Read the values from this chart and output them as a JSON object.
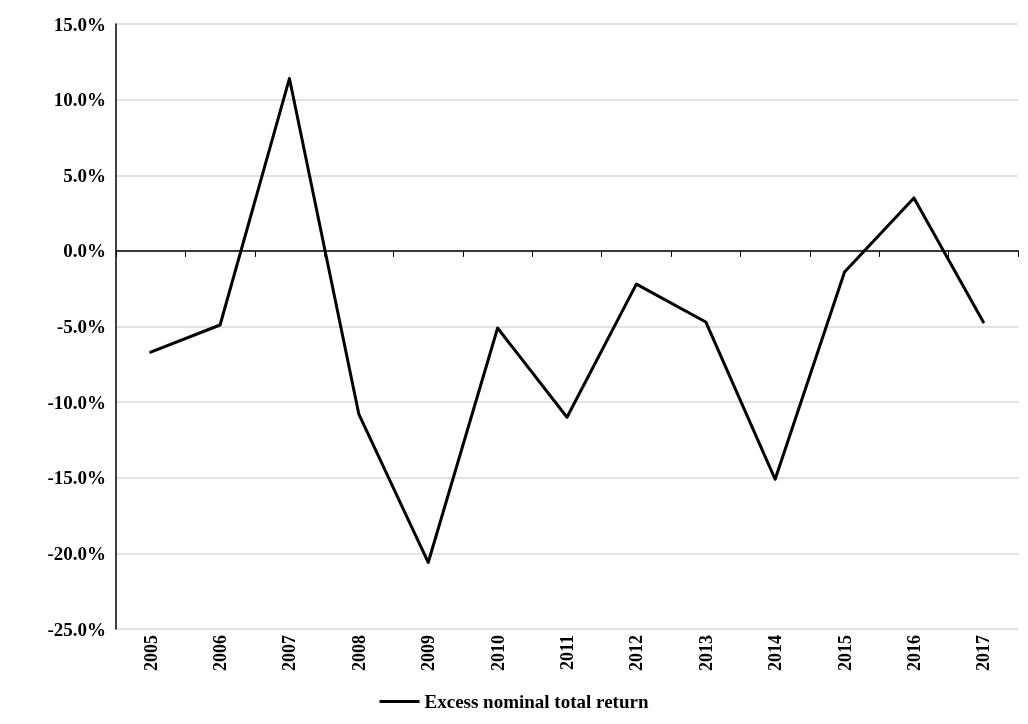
{
  "chart_data": {
    "type": "line",
    "categories": [
      "2005",
      "2006",
      "2007",
      "2008",
      "2009",
      "2010",
      "2011",
      "2012",
      "2013",
      "2014",
      "2015",
      "2016",
      "2017"
    ],
    "series": [
      {
        "name": "Excess nominal total return",
        "color": "#000000",
        "values": [
          -6.7,
          -4.9,
          11.4,
          -10.8,
          -20.6,
          -5.1,
          -11.0,
          -2.2,
          -4.7,
          -15.1,
          -1.4,
          3.5,
          -4.7
        ]
      }
    ],
    "ylim": [
      -25,
      15
    ],
    "yticks": [
      {
        "value": -25,
        "label": "-25.0%"
      },
      {
        "value": -20,
        "label": "-20.0%"
      },
      {
        "value": -15,
        "label": "-15.0%"
      },
      {
        "value": -10,
        "label": "-10.0%"
      },
      {
        "value": -5,
        "label": "-5.0%"
      },
      {
        "value": 0,
        "label": "0.0%"
      },
      {
        "value": 5,
        "label": "5.0%"
      },
      {
        "value": 10,
        "label": "10.0%"
      },
      {
        "value": 15,
        "label": "15.0%"
      }
    ],
    "grid": "y",
    "legend": "bottom",
    "marker": "none",
    "line_style": "solid"
  }
}
